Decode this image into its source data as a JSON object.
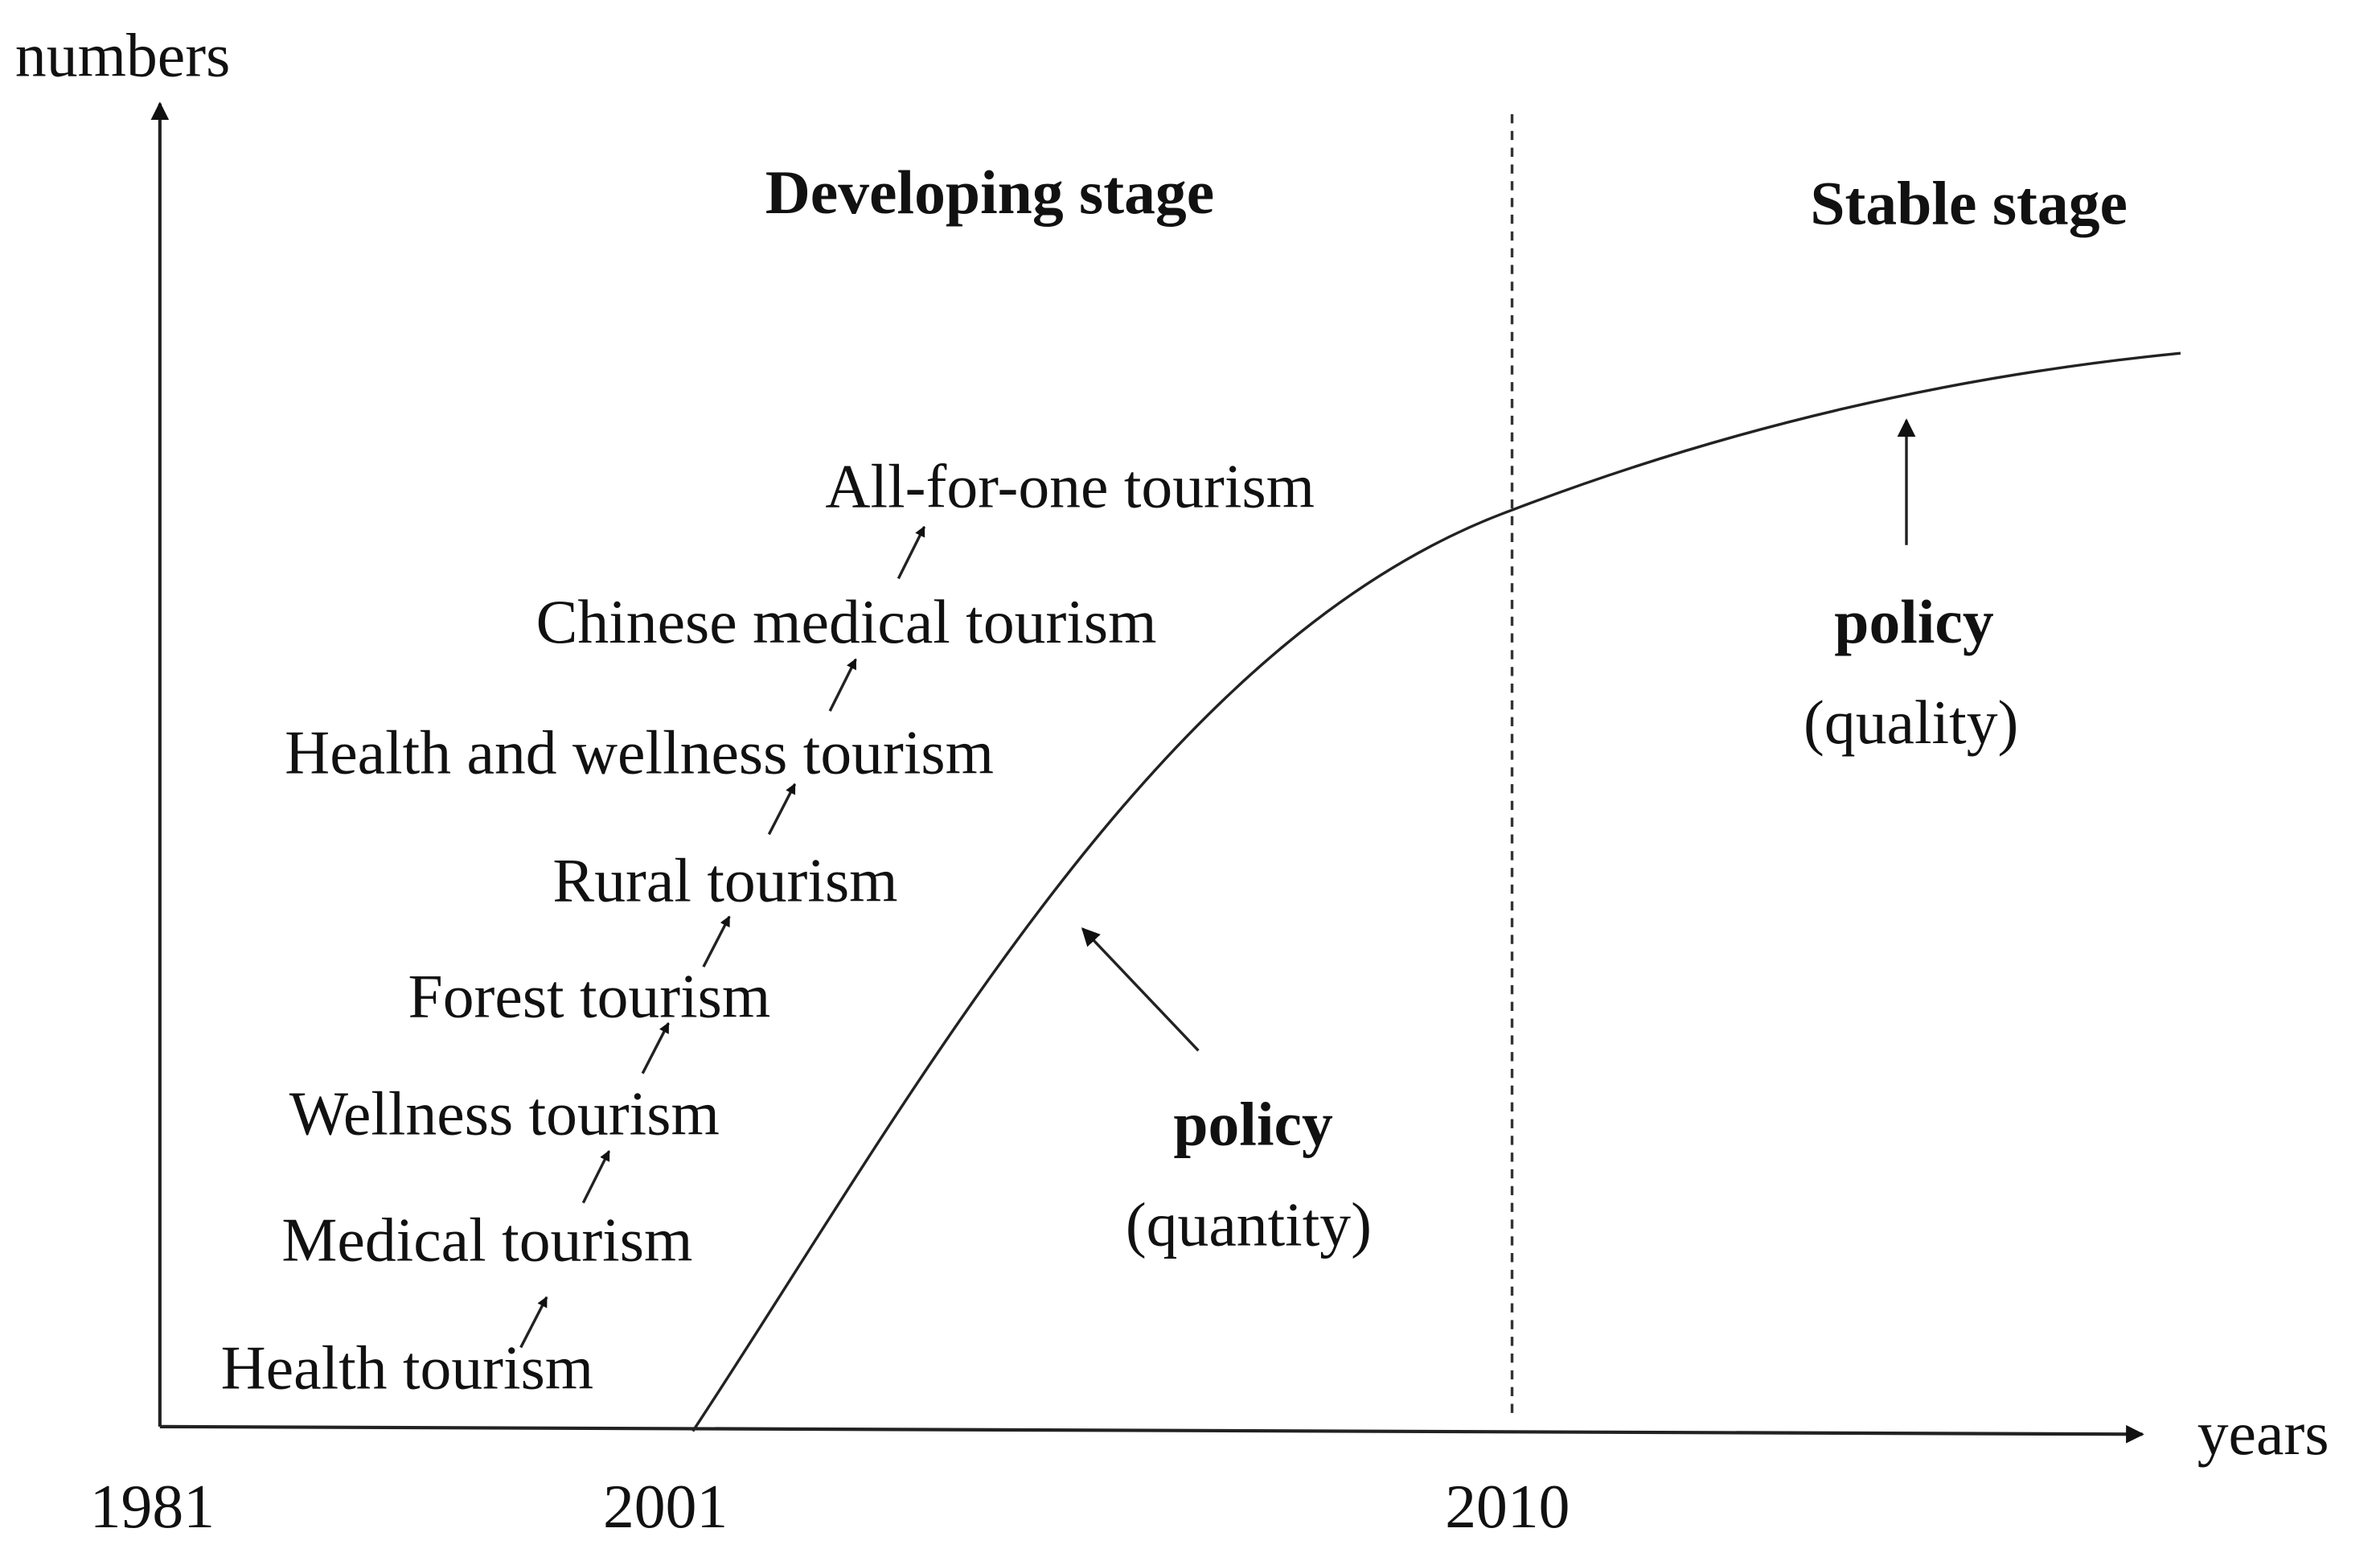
{
  "axes": {
    "y_label": "numbers",
    "x_label": "years",
    "years": [
      "1981",
      "2001",
      "2010"
    ]
  },
  "stages": [
    "Developing stage",
    "Stable stage"
  ],
  "tourism_types": [
    "Health tourism",
    "Medical tourism",
    "Wellness tourism",
    "Forest tourism",
    "Rural tourism",
    "Health and wellness tourism",
    "Chinese medical tourism",
    "All-for-one tourism"
  ],
  "policies": [
    {
      "name": "policy",
      "note": "(quantity)"
    },
    {
      "name": "policy",
      "note": "(quality)"
    }
  ]
}
